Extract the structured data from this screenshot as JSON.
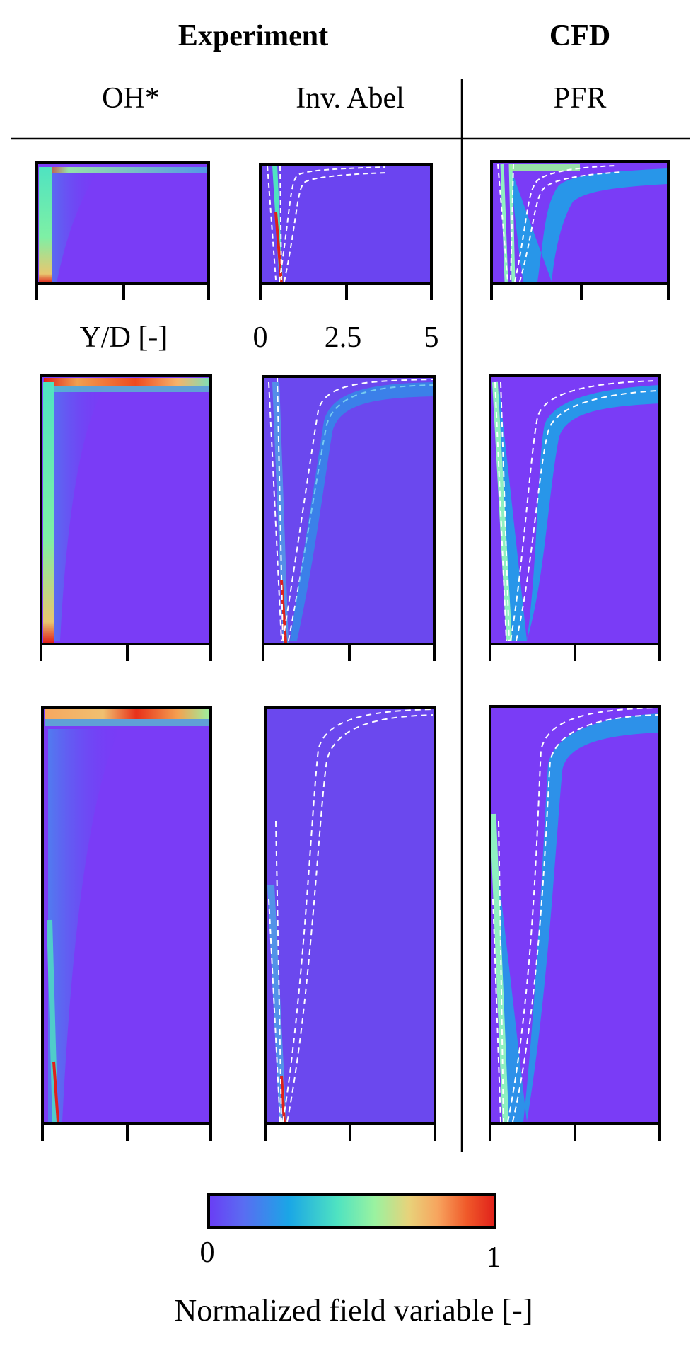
{
  "header": {
    "experiment": "Experiment",
    "cfd": "CFD",
    "col_ohstar": "OH*",
    "col_inv_abel": "Inv. Abel",
    "col_pfr": "PFR"
  },
  "axis": {
    "label": "Y/D [-]",
    "ticks": [
      "0",
      "2.5",
      "5"
    ]
  },
  "colorbar": {
    "min_label": "0",
    "max_label": "1",
    "title": "Normalized field variable [-]",
    "colors": [
      "#6a3df5",
      "#5a6cf2",
      "#1aa6e6",
      "#4fe3c1",
      "#9af2a0",
      "#e8d27a",
      "#f7a45e",
      "#f05a2a",
      "#e0201a"
    ],
    "background_color": "#7a3cf6"
  }
}
